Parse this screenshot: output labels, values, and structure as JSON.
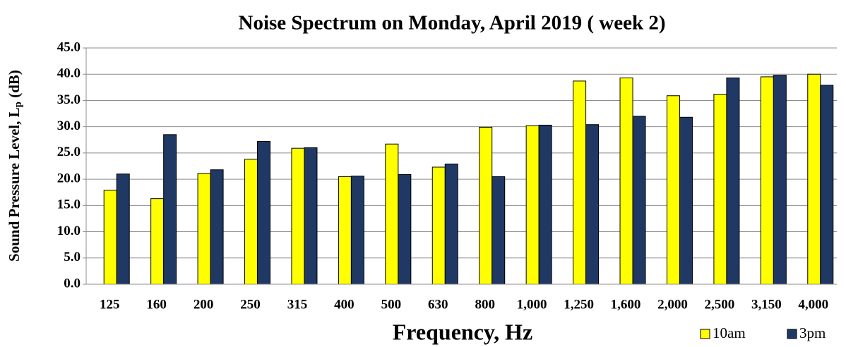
{
  "chart_data": {
    "type": "bar",
    "title": "Noise Spectrum on Monday, April 2019 ( week 2)",
    "xlabel": "Frequency, Hz",
    "ylabel": {
      "text": "Sound Pressure Level, L",
      "subscript": "p",
      "suffix": " (dB)"
    },
    "categories": [
      "125",
      "160",
      "200",
      "250",
      "315",
      "400",
      "500",
      "630",
      "800",
      "1,000",
      "1,250",
      "1,600",
      "2,000",
      "2,500",
      "3,150",
      "4,000"
    ],
    "series": [
      {
        "name": "10am",
        "color": "#ffff00",
        "values": [
          17.9,
          16.3,
          21.1,
          23.8,
          25.9,
          20.5,
          26.7,
          22.3,
          29.9,
          30.2,
          38.7,
          39.3,
          35.9,
          36.2,
          39.5,
          40.0
        ]
      },
      {
        "name": "3pm",
        "color": "#1f3864",
        "values": [
          21.0,
          28.5,
          21.8,
          27.2,
          26.0,
          20.6,
          20.9,
          22.9,
          20.5,
          30.3,
          30.4,
          32.0,
          31.8,
          39.3,
          39.8,
          37.9
        ]
      }
    ],
    "ylim": [
      0,
      45
    ],
    "yticks": [
      {
        "value": 0,
        "label": "0.0"
      },
      {
        "value": 5,
        "label": "5.0"
      },
      {
        "value": 10,
        "label": "10.0"
      },
      {
        "value": 15,
        "label": "15.0"
      },
      {
        "value": 20,
        "label": "20.0"
      },
      {
        "value": 25,
        "label": "25.0"
      },
      {
        "value": 30,
        "label": "30.0"
      },
      {
        "value": 35,
        "label": "35.0"
      },
      {
        "value": 40,
        "label": "40.0"
      },
      {
        "value": 45,
        "label": "45.0"
      }
    ],
    "grid": true,
    "legend": "bottom-right"
  }
}
